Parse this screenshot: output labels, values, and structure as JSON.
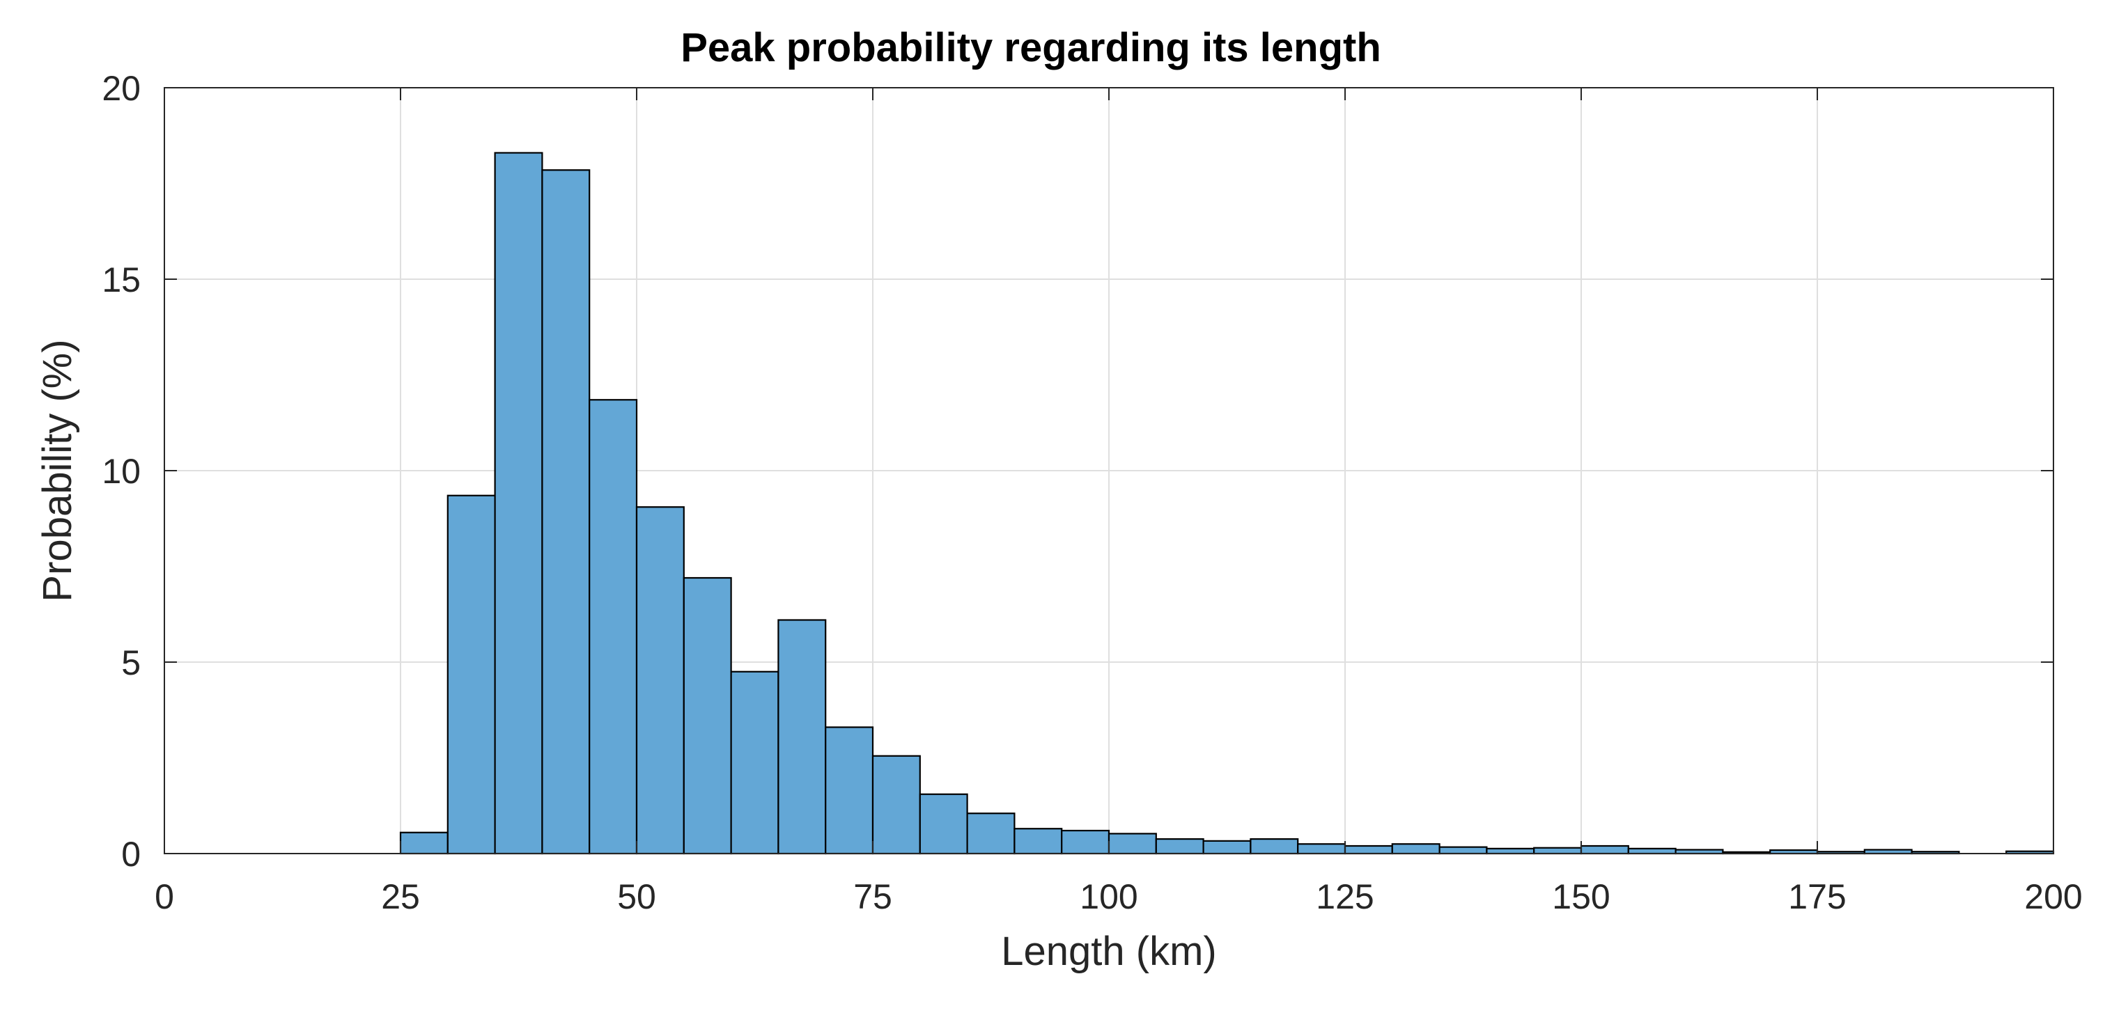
{
  "chart_data": {
    "type": "bar",
    "title": "Peak probability regarding its length",
    "xlabel": "Length (km)",
    "ylabel": "Probability (%)",
    "xlim": [
      0,
      200
    ],
    "ylim": [
      0,
      20
    ],
    "xticks": [
      0,
      25,
      50,
      75,
      100,
      125,
      150,
      175,
      200
    ],
    "yticks": [
      0,
      5,
      10,
      15,
      20
    ],
    "grid": true,
    "bin_width": 5,
    "bins": [
      {
        "x0": 25,
        "x1": 30,
        "value": 0.55
      },
      {
        "x0": 30,
        "x1": 35,
        "value": 9.35
      },
      {
        "x0": 35,
        "x1": 40,
        "value": 18.3
      },
      {
        "x0": 40,
        "x1": 45,
        "value": 17.85
      },
      {
        "x0": 45,
        "x1": 50,
        "value": 11.85
      },
      {
        "x0": 50,
        "x1": 55,
        "value": 9.05
      },
      {
        "x0": 55,
        "x1": 60,
        "value": 7.2
      },
      {
        "x0": 60,
        "x1": 65,
        "value": 4.75
      },
      {
        "x0": 65,
        "x1": 70,
        "value": 6.1
      },
      {
        "x0": 70,
        "x1": 75,
        "value": 3.3
      },
      {
        "x0": 75,
        "x1": 80,
        "value": 2.55
      },
      {
        "x0": 80,
        "x1": 85,
        "value": 1.55
      },
      {
        "x0": 85,
        "x1": 90,
        "value": 1.05
      },
      {
        "x0": 90,
        "x1": 95,
        "value": 0.65
      },
      {
        "x0": 95,
        "x1": 100,
        "value": 0.6
      },
      {
        "x0": 100,
        "x1": 105,
        "value": 0.52
      },
      {
        "x0": 105,
        "x1": 110,
        "value": 0.38
      },
      {
        "x0": 110,
        "x1": 115,
        "value": 0.33
      },
      {
        "x0": 115,
        "x1": 120,
        "value": 0.38
      },
      {
        "x0": 120,
        "x1": 125,
        "value": 0.25
      },
      {
        "x0": 125,
        "x1": 130,
        "value": 0.2
      },
      {
        "x0": 130,
        "x1": 135,
        "value": 0.25
      },
      {
        "x0": 135,
        "x1": 140,
        "value": 0.17
      },
      {
        "x0": 140,
        "x1": 145,
        "value": 0.13
      },
      {
        "x0": 145,
        "x1": 150,
        "value": 0.15
      },
      {
        "x0": 150,
        "x1": 155,
        "value": 0.2
      },
      {
        "x0": 155,
        "x1": 160,
        "value": 0.13
      },
      {
        "x0": 160,
        "x1": 165,
        "value": 0.1
      },
      {
        "x0": 165,
        "x1": 170,
        "value": 0.04
      },
      {
        "x0": 170,
        "x1": 175,
        "value": 0.09
      },
      {
        "x0": 175,
        "x1": 180,
        "value": 0.05
      },
      {
        "x0": 180,
        "x1": 185,
        "value": 0.1
      },
      {
        "x0": 185,
        "x1": 190,
        "value": 0.05
      },
      {
        "x0": 195,
        "x1": 200,
        "value": 0.06
      }
    ],
    "bar_color": "#63A7D6",
    "bar_edge_color": "#000000",
    "grid_color": "#DFDFDF",
    "axis_color": "#262626"
  }
}
